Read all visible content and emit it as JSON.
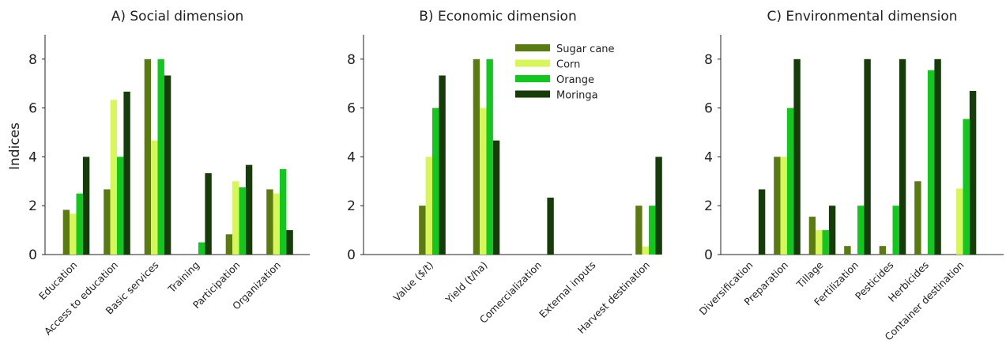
{
  "series_colors": {
    "Sugar cane": "#5a7a12",
    "Corn": "#d8f55a",
    "Orange": "#12c81f",
    "Moringa": "#163d09"
  },
  "legend": [
    "Sugar cane",
    "Corn",
    "Orange",
    "Moringa"
  ],
  "ylabel": "Indices",
  "chart_data": [
    {
      "type": "bar",
      "title": "A) Social dimension",
      "ylim": [
        0,
        9
      ],
      "yticks": [
        0,
        2,
        4,
        6,
        8
      ],
      "categories": [
        "Education",
        "Access to education",
        "Basic services",
        "Training",
        "Participation",
        "Organization"
      ],
      "series": [
        {
          "name": "Sugar cane",
          "values": [
            1.83,
            2.67,
            8.0,
            0,
            0.83,
            2.67
          ]
        },
        {
          "name": "Corn",
          "values": [
            1.67,
            6.33,
            4.67,
            0,
            3.0,
            2.5
          ]
        },
        {
          "name": "Orange",
          "values": [
            2.5,
            4.0,
            8.0,
            0.5,
            2.75,
            3.5
          ]
        },
        {
          "name": "Moringa",
          "values": [
            4.0,
            6.67,
            7.33,
            3.33,
            3.67,
            1.0
          ]
        }
      ]
    },
    {
      "type": "bar",
      "title": "B) Economic dimension",
      "ylim": [
        0,
        9
      ],
      "yticks": [
        0,
        2,
        4,
        6,
        8
      ],
      "categories": [
        "Value ($/t)",
        "Yield (t/ha)",
        "Comercialization",
        "External inputs",
        "Harvest destination"
      ],
      "series": [
        {
          "name": "Sugar cane",
          "values": [
            2.0,
            8.0,
            0,
            0,
            2.0
          ]
        },
        {
          "name": "Corn",
          "values": [
            4.0,
            6.0,
            0,
            0,
            0.33
          ]
        },
        {
          "name": "Orange",
          "values": [
            6.0,
            8.0,
            0,
            0,
            2.0
          ]
        },
        {
          "name": "Moringa",
          "values": [
            7.33,
            4.67,
            2.33,
            0,
            4.0
          ]
        }
      ]
    },
    {
      "type": "bar",
      "title": "C) Environmental dimension",
      "ylim": [
        0,
        9
      ],
      "yticks": [
        0,
        2,
        4,
        6,
        8
      ],
      "categories": [
        "Diversification",
        "Preparation",
        "Tillage",
        "Fertilization",
        "Pesticides",
        "Herbicides",
        "Container destination"
      ],
      "series": [
        {
          "name": "Sugar cane",
          "values": [
            0,
            4.0,
            1.55,
            0.35,
            0.35,
            3.0,
            0
          ]
        },
        {
          "name": "Corn",
          "values": [
            0,
            4.0,
            1.0,
            0,
            0,
            0,
            2.7
          ]
        },
        {
          "name": "Orange",
          "values": [
            0,
            6.0,
            1.0,
            2.0,
            2.0,
            7.55,
            5.55
          ]
        },
        {
          "name": "Moringa",
          "values": [
            2.67,
            8.0,
            2.0,
            8.0,
            8.0,
            8.0,
            6.7
          ]
        }
      ]
    }
  ]
}
